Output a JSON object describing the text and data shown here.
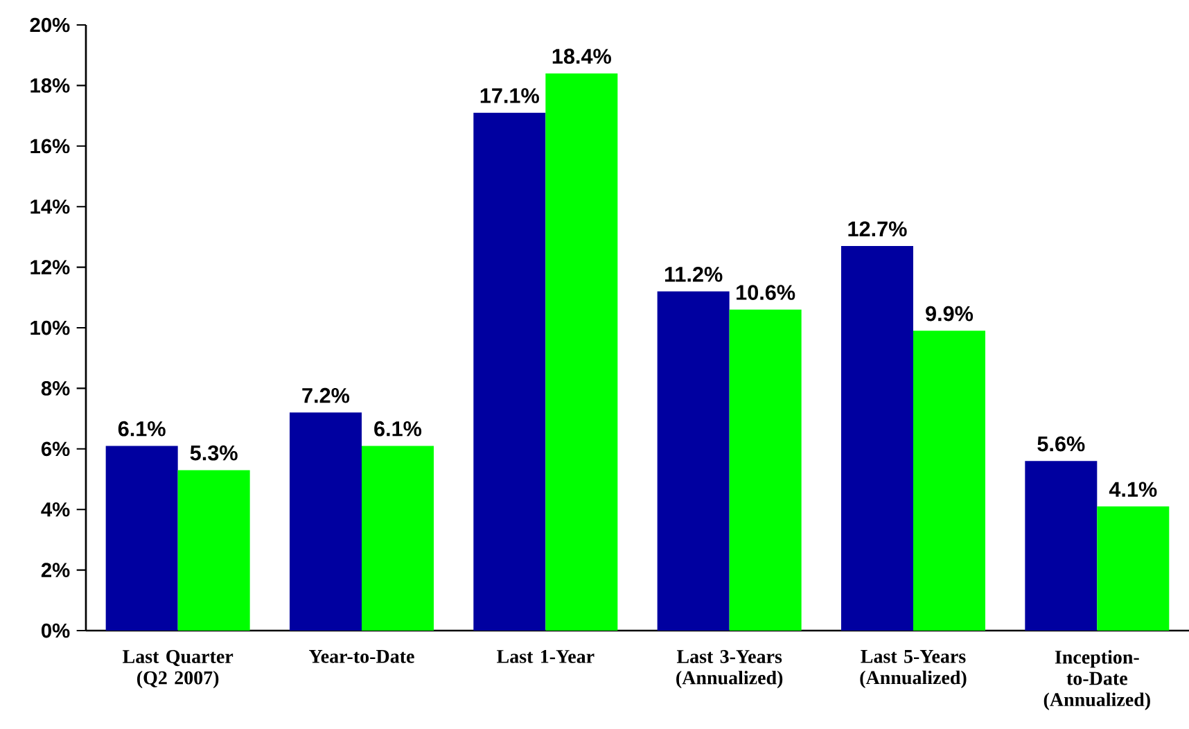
{
  "chart_data": {
    "type": "bar",
    "categories": [
      "Last Quarter (Q2 2007)",
      "Year-to-Date",
      "Last 1-Year",
      "Last 3-Years (Annualized)",
      "Last 5-Years (Annualized)",
      "Inception-to-Date (Annualized)"
    ],
    "series": [
      {
        "color": "#0000a0",
        "values": [
          6.1,
          7.2,
          17.1,
          11.2,
          12.7,
          5.6
        ],
        "value_labels": [
          "6.1%",
          "7.2%",
          "17.1%",
          "11.2%",
          "12.7%",
          "5.6%"
        ]
      },
      {
        "color": "#00ff00",
        "values": [
          5.3,
          6.1,
          18.4,
          10.6,
          9.9,
          4.1
        ],
        "value_labels": [
          "5.3%",
          "6.1%",
          "18.4%",
          "10.6%",
          "9.9%",
          "4.1%"
        ]
      }
    ],
    "ylim": [
      0,
      20
    ],
    "yticks": [
      {
        "value": 0,
        "label": "0%"
      },
      {
        "value": 2,
        "label": "2%"
      },
      {
        "value": 4,
        "label": "4%"
      },
      {
        "value": 6,
        "label": "6%"
      },
      {
        "value": 8,
        "label": "8%"
      },
      {
        "value": 10,
        "label": "10%"
      },
      {
        "value": 12,
        "label": "12%"
      },
      {
        "value": 14,
        "label": "14%"
      },
      {
        "value": 16,
        "label": "16%"
      },
      {
        "value": 18,
        "label": "18%"
      },
      {
        "value": 20,
        "label": "20%"
      }
    ],
    "grid": false
  }
}
